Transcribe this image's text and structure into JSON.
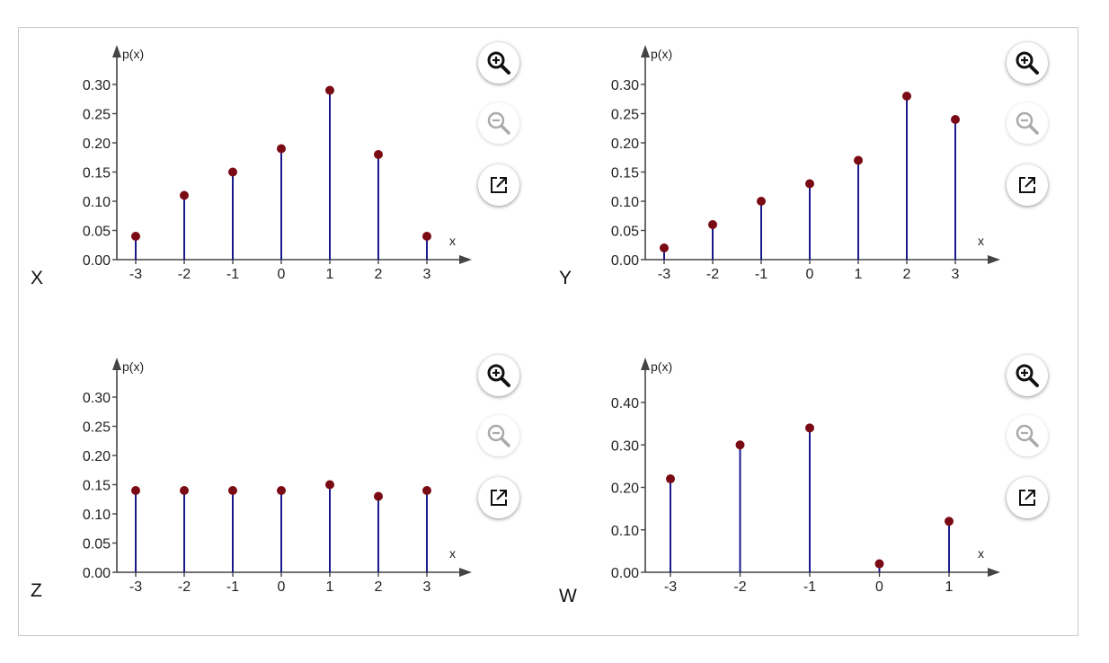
{
  "chart_data": [
    {
      "type": "stem",
      "variable": "X",
      "ylabel": "p(x)",
      "xlabel": "x",
      "x": [
        -3,
        -2,
        -1,
        0,
        1,
        2,
        3
      ],
      "x_tick_labels": [
        "-3",
        "-2",
        "-1",
        "0",
        "1",
        "2",
        "3"
      ],
      "y_ticks": [
        0,
        0.05,
        0.1,
        0.15,
        0.2,
        0.25,
        0.3
      ],
      "y_tick_labels": [
        "0.00",
        "0.05",
        "0.10",
        "0.15",
        "0.20",
        "0.25",
        "0.30"
      ],
      "ylim": [
        0,
        0.3
      ],
      "values": [
        0.04,
        0.11,
        0.15,
        0.19,
        0.29,
        0.18,
        0.04
      ]
    },
    {
      "type": "stem",
      "variable": "Y",
      "ylabel": "p(x)",
      "xlabel": "x",
      "x": [
        -3,
        -2,
        -1,
        0,
        1,
        2,
        3
      ],
      "x_tick_labels": [
        "-3",
        "-2",
        "-1",
        "0",
        "1",
        "2",
        "3"
      ],
      "y_ticks": [
        0,
        0.05,
        0.1,
        0.15,
        0.2,
        0.25,
        0.3
      ],
      "y_tick_labels": [
        "0.00",
        "0.05",
        "0.10",
        "0.15",
        "0.20",
        "0.25",
        "0.30"
      ],
      "ylim": [
        0,
        0.3
      ],
      "values": [
        0.02,
        0.06,
        0.1,
        0.13,
        0.17,
        0.28,
        0.24
      ]
    },
    {
      "type": "stem",
      "variable": "Z",
      "ylabel": "p(x)",
      "xlabel": "x",
      "x": [
        -3,
        -2,
        -1,
        0,
        1,
        2,
        3
      ],
      "x_tick_labels": [
        "-3",
        "-2",
        "-1",
        "0",
        "1",
        "2",
        "3"
      ],
      "y_ticks": [
        0,
        0.05,
        0.1,
        0.15,
        0.2,
        0.25,
        0.3
      ],
      "y_tick_labels": [
        "0.00",
        "0.05",
        "0.10",
        "0.15",
        "0.20",
        "0.25",
        "0.30"
      ],
      "ylim": [
        0,
        0.3
      ],
      "values": [
        0.14,
        0.14,
        0.14,
        0.14,
        0.15,
        0.13,
        0.14
      ]
    },
    {
      "type": "stem",
      "variable": "W",
      "ylabel": "p(x)",
      "xlabel": "x",
      "x": [
        -3,
        -2,
        -1,
        0,
        1
      ],
      "x_tick_labels": [
        "-3",
        "-2",
        "-1",
        "0",
        "1"
      ],
      "y_ticks": [
        0,
        0.1,
        0.2,
        0.3,
        0.4
      ],
      "y_tick_labels": [
        "0.00",
        "0.10",
        "0.20",
        "0.30",
        "0.40"
      ],
      "ylim": [
        0,
        0.4
      ],
      "values": [
        0.22,
        0.3,
        0.34,
        0.02,
        0.12
      ]
    }
  ],
  "colors": {
    "stem": "#1a1a8c",
    "marker": "#7a0a14",
    "axis": "#444444"
  },
  "controls": {
    "zoom_in_icon": "zoom-in-icon",
    "zoom_out_icon": "zoom-out-icon",
    "open_external_icon": "open-external-icon"
  }
}
